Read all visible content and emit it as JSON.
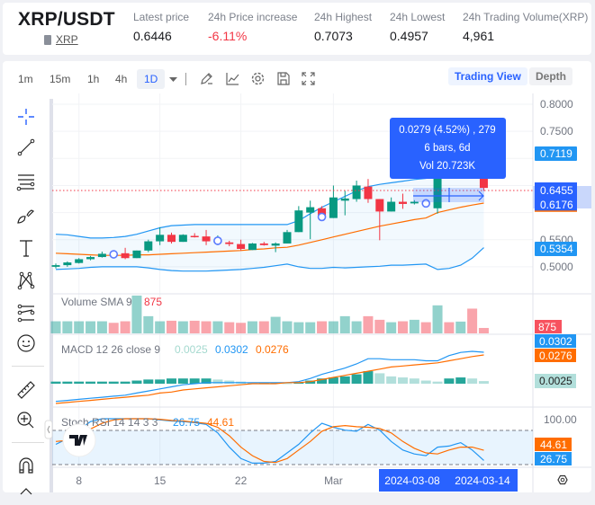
{
  "header": {
    "pair": "XRP/USDT",
    "base_link": "XRP",
    "stats": [
      {
        "label": "Latest price",
        "value": "0.6446"
      },
      {
        "label": "24h Price increase",
        "value": "-6.11%",
        "color": "#f23645"
      },
      {
        "label": "24h Highest",
        "value": "0.7073"
      },
      {
        "label": "24h Lowest",
        "value": "0.4957"
      },
      {
        "label": "24h Trading Volume(XRP)",
        "value": "4,961"
      }
    ]
  },
  "toolbar": {
    "timeframes": [
      "1m",
      "15m",
      "1h",
      "4h",
      "1D"
    ],
    "active_timeframe": "1D",
    "trading_view": "Trading View",
    "depth": "Depth"
  },
  "price_axis": {
    "ticks": [
      "0.8000",
      "0.7500",
      "0.5500",
      "0.5000"
    ],
    "upper_band": "0.7119",
    "last_price": "0.6455",
    "middle_band": "0.6176",
    "lower_band": "0.5354"
  },
  "tooltip": {
    "line1": "0.0279 (4.52%) , 279",
    "line2": "6 bars, 6d",
    "line3": "Vol 20.723K"
  },
  "volume_pane": {
    "label": "Volume SMA 9",
    "value": "875"
  },
  "macd_pane": {
    "label": "MACD 12 26 close 9",
    "hist": "0.0025",
    "macd": "0.0302",
    "signal": "0.0276"
  },
  "stoch_pane": {
    "label": "Stoch RSI 14 14 3 3",
    "k": "26.75",
    "d": "44.61",
    "top_tick": "100.00"
  },
  "time_axis": {
    "labels": [
      {
        "text": "8",
        "index": 2
      },
      {
        "text": "15",
        "index": 9
      },
      {
        "text": "22",
        "index": 16
      },
      {
        "text": "Mar",
        "index": 24
      }
    ],
    "range_start": "2024-03-08",
    "range_end": "2024-03-14"
  },
  "colors": {
    "up": "#26a69a",
    "up_candle": "#089981",
    "down": "#f23645",
    "accent": "#2962ff",
    "band": "#2196f3",
    "signal": "#ff6d00"
  },
  "chart_data": {
    "type": "candlestick",
    "candles": [
      [
        0.5,
        0.506,
        0.497,
        0.503
      ],
      [
        0.503,
        0.51,
        0.5,
        0.508
      ],
      [
        0.507,
        0.516,
        0.506,
        0.514
      ],
      [
        0.514,
        0.52,
        0.512,
        0.518
      ],
      [
        0.518,
        0.528,
        0.517,
        0.524
      ],
      [
        0.524,
        0.527,
        0.516,
        0.523
      ],
      [
        0.525,
        0.535,
        0.514,
        0.516
      ],
      [
        0.516,
        0.53,
        0.516,
        0.53
      ],
      [
        0.53,
        0.55,
        0.527,
        0.547
      ],
      [
        0.547,
        0.573,
        0.54,
        0.559
      ],
      [
        0.559,
        0.563,
        0.543,
        0.546
      ],
      [
        0.546,
        0.56,
        0.546,
        0.559
      ],
      [
        0.557,
        0.562,
        0.554,
        0.555
      ],
      [
        0.556,
        0.568,
        0.54,
        0.547
      ],
      [
        0.548,
        0.558,
        0.54,
        0.548
      ],
      [
        0.545,
        0.548,
        0.538,
        0.542
      ],
      [
        0.542,
        0.55,
        0.53,
        0.533
      ],
      [
        0.531,
        0.544,
        0.531,
        0.543
      ],
      [
        0.543,
        0.546,
        0.539,
        0.54
      ],
      [
        0.539,
        0.545,
        0.527,
        0.543
      ],
      [
        0.543,
        0.568,
        0.543,
        0.564
      ],
      [
        0.564,
        0.612,
        0.564,
        0.604
      ],
      [
        0.6,
        0.622,
        0.551,
        0.61
      ],
      [
        0.608,
        0.612,
        0.59,
        0.592
      ],
      [
        0.59,
        0.65,
        0.59,
        0.628
      ],
      [
        0.622,
        0.64,
        0.595,
        0.626
      ],
      [
        0.625,
        0.659,
        0.62,
        0.65
      ],
      [
        0.648,
        0.662,
        0.618,
        0.625
      ],
      [
        0.625,
        0.625,
        0.549,
        0.602
      ],
      [
        0.602,
        0.628,
        0.602,
        0.62
      ],
      [
        0.62,
        0.635,
        0.607,
        0.616
      ],
      [
        0.617,
        0.623,
        0.615,
        0.62
      ],
      [
        0.619,
        0.624,
        0.612,
        0.617
      ],
      [
        0.608,
        0.71,
        0.598,
        0.7
      ],
      [
        0.7,
        0.712,
        0.68,
        0.69
      ],
      [
        0.69,
        0.715,
        0.675,
        0.705
      ],
      [
        0.705,
        0.715,
        0.665,
        0.67
      ],
      [
        0.67,
        0.68,
        0.64,
        0.6455
      ]
    ],
    "markers": [
      5,
      14,
      23,
      32
    ],
    "bb_upper": [
      0.56,
      0.559,
      0.556,
      0.553,
      0.553,
      0.554,
      0.556,
      0.56,
      0.566,
      0.572,
      0.576,
      0.577,
      0.578,
      0.578,
      0.578,
      0.578,
      0.578,
      0.578,
      0.578,
      0.578,
      0.578,
      0.585,
      0.598,
      0.61,
      0.62,
      0.63,
      0.64,
      0.648,
      0.652,
      0.655,
      0.658,
      0.661,
      0.663,
      0.675,
      0.685,
      0.695,
      0.703,
      0.7119
    ],
    "bb_middle": [
      0.525,
      0.524,
      0.523,
      0.522,
      0.521,
      0.521,
      0.521,
      0.522,
      0.522,
      0.523,
      0.524,
      0.525,
      0.526,
      0.527,
      0.528,
      0.529,
      0.53,
      0.532,
      0.533,
      0.535,
      0.536,
      0.54,
      0.545,
      0.55,
      0.555,
      0.56,
      0.565,
      0.57,
      0.575,
      0.579,
      0.583,
      0.587,
      0.59,
      0.6,
      0.605,
      0.61,
      0.614,
      0.6176
    ],
    "bb_lower": [
      0.495,
      0.496,
      0.497,
      0.499,
      0.5,
      0.5,
      0.5,
      0.5,
      0.498,
      0.495,
      0.493,
      0.492,
      0.492,
      0.492,
      0.493,
      0.494,
      0.495,
      0.497,
      0.499,
      0.502,
      0.505,
      0.5,
      0.497,
      0.497,
      0.499,
      0.498,
      0.499,
      0.5,
      0.501,
      0.503,
      0.503,
      0.504,
      0.505,
      0.495,
      0.497,
      0.503,
      0.516,
      0.5354
    ],
    "volume": [
      1950,
      1950,
      1950,
      1950,
      1950,
      1700,
      1950,
      6100,
      2770,
      1950,
      2040,
      1950,
      2040,
      1950,
      1950,
      1800,
      1700,
      1950,
      1950,
      2670,
      1950,
      1800,
      1800,
      1950,
      1950,
      2770,
      1950,
      2770,
      2190,
      1800,
      1950,
      2190,
      1800,
      4520,
      1800,
      1900,
      3990,
      875
    ],
    "macd": [
      -0.017,
      -0.016,
      -0.015,
      -0.014,
      -0.013,
      -0.012,
      -0.011,
      -0.009,
      -0.007,
      -0.005,
      -0.003,
      -0.001,
      0.0,
      0.001,
      0.001,
      0.001,
      0.001,
      0.001,
      0.001,
      0.001,
      0.001,
      0.002,
      0.005,
      0.009,
      0.012,
      0.015,
      0.019,
      0.024,
      0.024,
      0.023,
      0.023,
      0.023,
      0.022,
      0.022,
      0.027,
      0.03,
      0.031,
      0.0302
    ],
    "signal": [
      -0.019,
      -0.018,
      -0.017,
      -0.016,
      -0.015,
      -0.014,
      -0.013,
      -0.012,
      -0.011,
      -0.009,
      -0.008,
      -0.006,
      -0.005,
      -0.004,
      -0.003,
      -0.002,
      -0.001,
      0.0,
      0.0,
      0.0,
      0.001,
      0.001,
      0.002,
      0.004,
      0.006,
      0.008,
      0.01,
      0.012,
      0.014,
      0.016,
      0.017,
      0.018,
      0.019,
      0.02,
      0.022,
      0.024,
      0.026,
      0.0276
    ],
    "histogram": [
      0.002,
      0.002,
      0.002,
      0.002,
      0.002,
      0.002,
      0.002,
      0.003,
      0.004,
      0.004,
      0.005,
      0.005,
      0.005,
      0.005,
      0.004,
      0.003,
      0.002,
      0.001,
      0.001,
      0.001,
      0.0005,
      0.001,
      0.003,
      0.005,
      0.006,
      0.007,
      0.009,
      0.012,
      0.01,
      0.007,
      0.006,
      0.005,
      0.003,
      0.002,
      0.005,
      0.006,
      0.005,
      0.0025
    ],
    "stoch_k": [
      55,
      65,
      80,
      95,
      100,
      100,
      100,
      100,
      100,
      98,
      96,
      95,
      93,
      90,
      75,
      50,
      30,
      22,
      22,
      25,
      40,
      55,
      75,
      92,
      85,
      80,
      78,
      90,
      80,
      60,
      45,
      38,
      35,
      50,
      52,
      58,
      45,
      26.75
    ],
    "stoch_d": [
      60,
      62,
      70,
      82,
      92,
      98,
      100,
      100,
      100,
      99,
      97,
      96,
      94,
      92,
      85,
      70,
      50,
      35,
      25,
      23,
      30,
      45,
      60,
      78,
      86,
      88,
      86,
      85,
      83,
      75,
      60,
      48,
      40,
      38,
      45,
      50,
      50,
      44.61
    ],
    "ylim": [
      0.48,
      0.82
    ]
  }
}
